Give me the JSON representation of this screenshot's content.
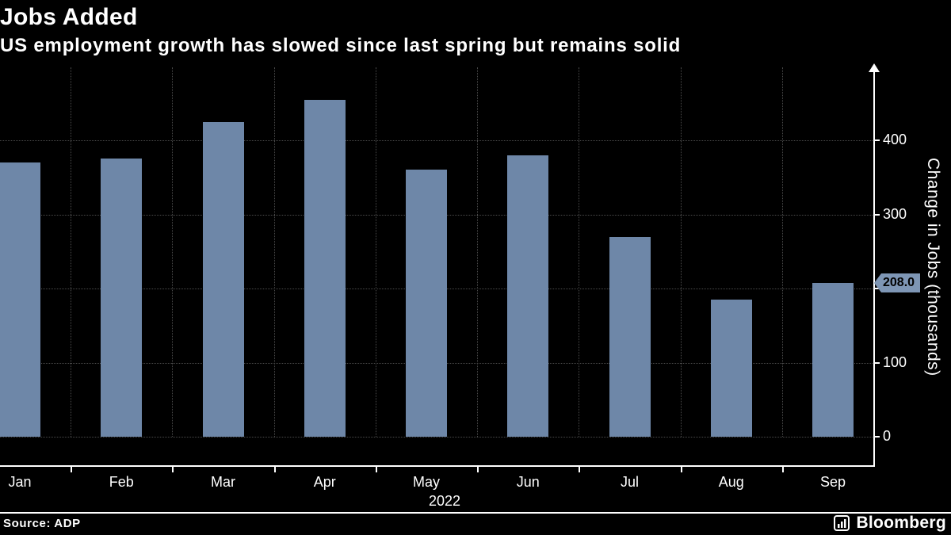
{
  "header": {
    "title": "Jobs Added",
    "subtitle": "US employment growth has slowed since last spring but remains solid"
  },
  "chart_data": {
    "type": "bar",
    "title": "Jobs Added",
    "subtitle": "US employment growth has slowed since last spring but remains solid",
    "categories": [
      "Jan",
      "Feb",
      "Mar",
      "Apr",
      "May",
      "Jun",
      "Jul",
      "Aug",
      "Sep"
    ],
    "x_axis_year": "2022",
    "values": [
      370,
      375,
      425,
      455,
      360,
      380,
      270,
      185,
      208
    ],
    "ylabel": "Change in Jobs (thousands)",
    "y_ticks": [
      0,
      100,
      200,
      300,
      400
    ],
    "ylim": [
      0,
      500
    ],
    "last_value_label": "208.0",
    "unit": "thousands",
    "bar_color": "#6e87a8",
    "badge_color": "#7e96b5",
    "grid": "dotted",
    "legend": "none"
  },
  "footer": {
    "source": "Source: ADP",
    "brand": "Bloomberg"
  }
}
